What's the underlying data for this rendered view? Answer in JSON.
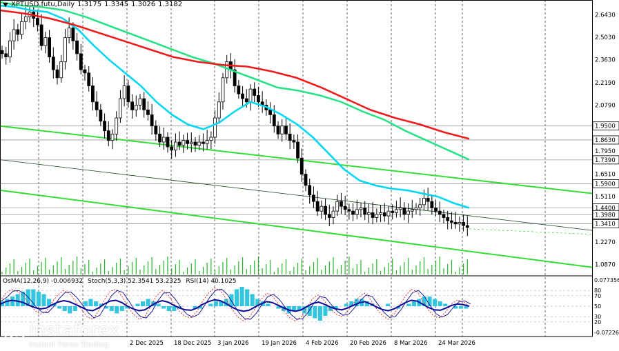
{
  "header": {
    "symbol": "XPTUSD.futu,Daily",
    "open": "1.3175",
    "high": "1.3345",
    "low": "1.3026",
    "close": "1.3182"
  },
  "indicator_header": {
    "osma": "OsMA(12,26,9) -0.006932",
    "stoch": "Stoch(5,3,3) 52.3541 53.2325",
    "rsi": "RSI(14) 40.1025"
  },
  "watermark": {
    "brand": "instaforex",
    "sub": "Instant Forex Trading"
  },
  "colors": {
    "ma_fast": "#00d7f2",
    "ma_mid": "#27e287",
    "ma_slow": "#ee1c1c",
    "channel": "#33dd33",
    "osma": "#32c6e0",
    "stoch_main": "#0a0a96",
    "stoch_signal": "#e01c1c",
    "rsi": "#0a0a96",
    "price_label_bg": "#ffffff"
  },
  "chart_data": {
    "type": "candlestick",
    "title": "XPTUSD.futu,Daily",
    "y_ticks": [
      "2.6430",
      "2.5030",
      "2.3630",
      "2.2190",
      "2.0790",
      "1.9500",
      "1.8630",
      "1.7950",
      "1.7390",
      "1.6510",
      "1.5900",
      "1.5110",
      "1.4400",
      "1.3980",
      "1.3410",
      "1.2270",
      "1.0870"
    ],
    "x_ticks": [
      "2 Dec 2025",
      "18 Dec 2025",
      "3 Jan 2026",
      "19 Jan 2026",
      "4 Feb 2026",
      "20 Feb 2026",
      "8 Mar 2026",
      "24 Mar 2026"
    ],
    "boxed_levels": [
      "1.9500",
      "1.8630",
      "1.7390",
      "1.5900",
      "1.4400",
      "1.3980",
      "1.3410"
    ],
    "last_close": 1.3182,
    "ylim": [
      1.06,
      2.7
    ],
    "closes": [
      2.4,
      2.38,
      2.48,
      2.55,
      2.52,
      2.6,
      2.63,
      2.66,
      2.62,
      2.58,
      2.45,
      2.5,
      2.38,
      2.3,
      2.25,
      2.35,
      2.5,
      2.56,
      2.48,
      2.4,
      2.3,
      2.28,
      2.2,
      2.1,
      2.05,
      1.98,
      1.92,
      1.86,
      1.9,
      2.0,
      2.12,
      2.2,
      2.1,
      2.05,
      2.08,
      2.12,
      2.05,
      2.02,
      1.95,
      1.9,
      1.85,
      1.88,
      1.82,
      1.8,
      1.85,
      1.83,
      1.86,
      1.84,
      1.85,
      1.83,
      1.85,
      1.84,
      1.86,
      1.88,
      2.0,
      2.1,
      2.25,
      2.35,
      2.3,
      2.2,
      2.15,
      2.12,
      2.1,
      2.18,
      2.14,
      2.1,
      2.08,
      2.05,
      2.02,
      1.95,
      1.9,
      1.95,
      1.9,
      1.86,
      1.85,
      1.75,
      1.65,
      1.58,
      1.52,
      1.48,
      1.42,
      1.45,
      1.4,
      1.38,
      1.42,
      1.48,
      1.45,
      1.43,
      1.42,
      1.4,
      1.43,
      1.44,
      1.4,
      1.41,
      1.38,
      1.4,
      1.41,
      1.39,
      1.42,
      1.41,
      1.43,
      1.44,
      1.4,
      1.42,
      1.43,
      1.44,
      1.46,
      1.5,
      1.48,
      1.44,
      1.42,
      1.4,
      1.38,
      1.36,
      1.35,
      1.34,
      1.35,
      1.33,
      1.3182
    ],
    "ma_fast": [
      2.7,
      2.69,
      2.67,
      2.66,
      2.62,
      2.55,
      2.45,
      2.36,
      2.28,
      2.2,
      2.1,
      2.02,
      1.96,
      1.93,
      1.97,
      2.04,
      2.1,
      2.07,
      2.02,
      1.96,
      1.88,
      1.78,
      1.68,
      1.61,
      1.58,
      1.56,
      1.55,
      1.53,
      1.51,
      1.47,
      1.44
    ],
    "ma_mid": [
      2.72,
      2.7,
      2.69,
      2.67,
      2.63,
      2.58,
      2.53,
      2.48,
      2.43,
      2.38,
      2.34,
      2.29,
      2.24,
      2.19,
      2.17,
      2.14,
      2.1,
      2.04,
      1.99,
      1.92,
      1.86,
      1.8,
      1.74
    ],
    "ma_slow": [
      2.67,
      2.65,
      2.62,
      2.58,
      2.53,
      2.48,
      2.43,
      2.38,
      2.35,
      2.33,
      2.32,
      2.29,
      2.25,
      2.19,
      2.12,
      2.05,
      2.0,
      1.96,
      1.91,
      1.87
    ],
    "channels": [
      {
        "from": [
          0,
          1.95
        ],
        "to": [
          1,
          1.53
        ]
      },
      {
        "from": [
          0,
          1.55
        ],
        "to": [
          1,
          1.07
        ]
      },
      {
        "from": [
          0,
          1.74
        ],
        "to": [
          1,
          1.3
        ]
      }
    ]
  },
  "indicator_data": {
    "levels_labels": [
      "0.077356",
      "80",
      "70",
      "50",
      "30",
      "20",
      "-0.07226"
    ],
    "osma": [
      0.02,
      0.03,
      0.04,
      0.05,
      0.06,
      0.07,
      0.07,
      0.06,
      0.05,
      0.03,
      0.01,
      -0.01,
      -0.02,
      -0.03,
      -0.02,
      0.0,
      0.02,
      0.03,
      0.02,
      0.01,
      -0.01,
      -0.02,
      -0.03,
      -0.02,
      -0.01,
      0.0,
      0.01,
      0.02,
      0.03,
      0.02,
      0.01,
      -0.01,
      -0.02,
      -0.02,
      -0.01,
      0.0,
      0.0,
      -0.01,
      -0.01,
      0.0,
      0.01,
      0.02,
      0.02,
      0.03,
      0.05,
      0.07,
      0.08,
      0.07,
      0.05,
      0.03,
      0.02,
      0.01,
      0.0,
      -0.01,
      -0.02,
      -0.03,
      -0.02,
      -0.02,
      -0.03,
      -0.04,
      -0.05,
      -0.06,
      -0.04,
      -0.02,
      -0.01,
      0.0,
      0.01,
      0.02,
      0.03,
      0.03,
      0.02,
      0.01,
      0.0,
      0.0,
      0.01,
      0.0,
      -0.01,
      0.0,
      0.01,
      0.02,
      0.03,
      0.04,
      0.04,
      0.03,
      0.02,
      0.01,
      0.0,
      -0.01,
      -0.01,
      -0.01
    ],
    "stoch": [
      60,
      75,
      82,
      78,
      70,
      55,
      42,
      35,
      40,
      58,
      72,
      80,
      74,
      60,
      45,
      30,
      25,
      40,
      62,
      78,
      82,
      70,
      50,
      35,
      25,
      30,
      50,
      70,
      80,
      72,
      55,
      40,
      30,
      28,
      40,
      60,
      75,
      85,
      80,
      65,
      45,
      30,
      22,
      28,
      45,
      62,
      75,
      70,
      55,
      40,
      28,
      22,
      30,
      48,
      65,
      72,
      60,
      45,
      35,
      30,
      40,
      55,
      68,
      75,
      62,
      45,
      32,
      25,
      35,
      52,
      70,
      82,
      78,
      60,
      42,
      30,
      28,
      40,
      55,
      62,
      58,
      50
    ]
  }
}
